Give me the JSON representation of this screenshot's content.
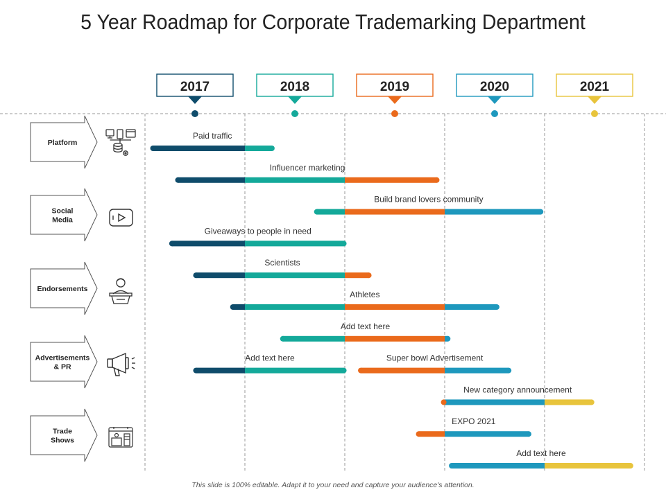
{
  "title": "5 Year Roadmap for Corporate Trademarking Department",
  "footer": "This slide is 100% editable. Adapt it to your need and capture your audience's attention.",
  "colors": {
    "y2017": "#0f4c6b",
    "y2018": "#14a99a",
    "y2019": "#ea6a1c",
    "y2020": "#1e98bd",
    "y2021": "#e8c43c",
    "grid": "#9a9a9a",
    "text": "#333333"
  },
  "chart_data": {
    "type": "gantt",
    "title": "5 Year Roadmap for Corporate Trademarking Department",
    "years": [
      "2017",
      "2018",
      "2019",
      "2020",
      "2021"
    ],
    "categories": [
      {
        "name": "Platform",
        "icon": "devices-database-icon"
      },
      {
        "name": "Social Media",
        "icon": "video-play-icon"
      },
      {
        "name": "Endorsements",
        "icon": "speaker-podium-icon"
      },
      {
        "name": "Advertisements & PR",
        "icon": "megaphone-icon"
      },
      {
        "name": "Trade Shows",
        "icon": "exhibition-booth-icon"
      }
    ],
    "tasks": [
      {
        "label": "Paid traffic",
        "start": 2017.08,
        "end": 2018.27,
        "row": 0
      },
      {
        "label": "Influencer marketing",
        "start": 2017.33,
        "end": 2019.92,
        "row": 1
      },
      {
        "label": "Build brand lovers community",
        "start": 2018.72,
        "end": 2020.96,
        "row": 2
      },
      {
        "label": "Giveaways to people in need",
        "start": 2017.27,
        "end": 2018.99,
        "row": 3
      },
      {
        "label": "Scientists",
        "start": 2017.51,
        "end": 2019.24,
        "row": 4
      },
      {
        "label": "Athletes",
        "start": 2017.88,
        "end": 2020.52,
        "row": 5
      },
      {
        "label": "Add text here",
        "start": 2018.38,
        "end": 2020.03,
        "row": 6
      },
      {
        "label": "Add text here",
        "start": 2017.51,
        "end": 2018.99,
        "row": 7
      },
      {
        "label": "Super bowl Advertisement",
        "start": 2019.16,
        "end": 2020.64,
        "row": 7
      },
      {
        "label": "New category announcement",
        "start": 2019.99,
        "end": 2021.47,
        "row": 8
      },
      {
        "label": "EXPO 2021",
        "start": 2019.74,
        "end": 2020.84,
        "row": 9
      },
      {
        "label": "Add text here",
        "start": 2020.07,
        "end": 2021.86,
        "row": 10
      }
    ]
  }
}
